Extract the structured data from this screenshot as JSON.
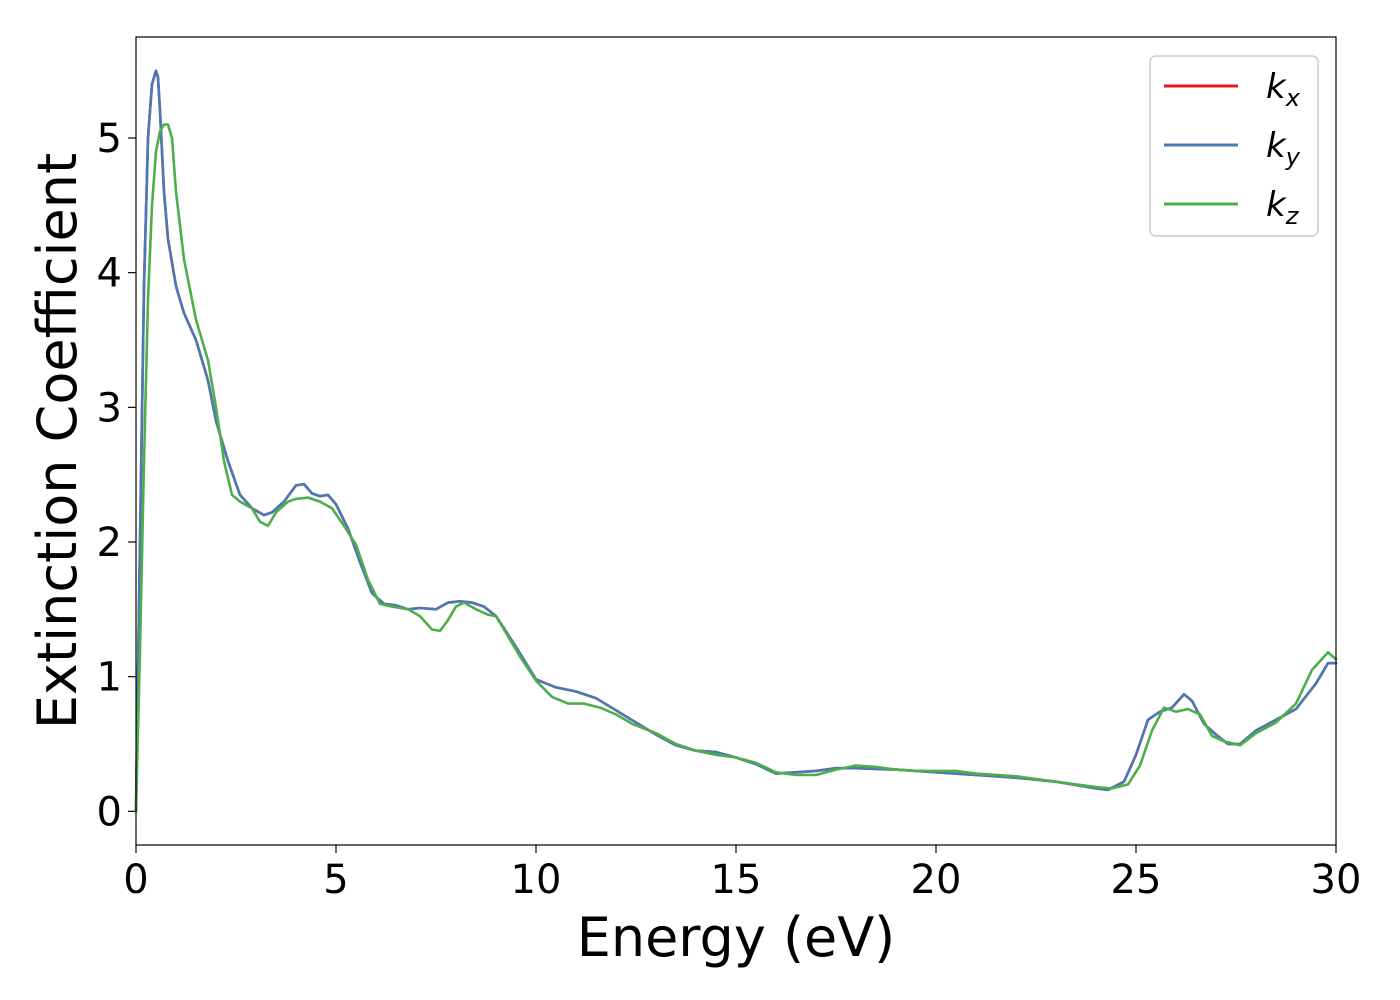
{
  "chart_data": {
    "type": "line",
    "xlabel": "Energy (eV)",
    "ylabel": "Extinction Coefficient",
    "xlim": [
      0,
      30
    ],
    "ylim": [
      -0.25,
      5.75
    ],
    "x_ticks": [
      "0",
      "5",
      "10",
      "15",
      "20",
      "25",
      "30"
    ],
    "y_ticks": [
      "0",
      "1",
      "2",
      "3",
      "4",
      "5"
    ],
    "grid": false,
    "legend_position": "top-right",
    "series": [
      {
        "name": "x",
        "legend_base": "k",
        "color": "#e41a1c",
        "x": [
          0,
          0.1,
          0.2,
          0.3,
          0.4,
          0.5,
          0.55,
          0.6,
          0.7,
          0.8,
          1.0,
          1.2,
          1.5,
          1.8,
          2.0,
          2.3,
          2.6,
          2.9,
          3.2,
          3.4,
          3.7,
          4.0,
          4.2,
          4.4,
          4.6,
          4.8,
          5.0,
          5.3,
          5.6,
          5.9,
          6.2,
          6.5,
          6.8,
          7.1,
          7.5,
          7.8,
          8.1,
          8.4,
          8.7,
          9.0,
          9.5,
          10.0,
          10.5,
          11.0,
          11.5,
          12.0,
          12.5,
          13.0,
          13.5,
          14.0,
          14.5,
          15.0,
          15.5,
          16.0,
          16.5,
          17.0,
          17.5,
          18.0,
          19.0,
          20.0,
          21.0,
          22.0,
          23.0,
          24.0,
          24.3,
          24.7,
          25.0,
          25.3,
          25.6,
          25.9,
          26.2,
          26.4,
          26.7,
          27.0,
          27.3,
          27.6,
          28.0,
          28.5,
          29.0,
          29.5,
          29.8,
          30.0
        ],
        "y": [
          0,
          2.0,
          3.9,
          5.0,
          5.4,
          5.5,
          5.45,
          5.2,
          4.6,
          4.25,
          3.9,
          3.7,
          3.5,
          3.2,
          2.9,
          2.6,
          2.35,
          2.25,
          2.2,
          2.22,
          2.3,
          2.42,
          2.43,
          2.36,
          2.34,
          2.35,
          2.28,
          2.1,
          1.85,
          1.62,
          1.54,
          1.53,
          1.5,
          1.51,
          1.5,
          1.55,
          1.56,
          1.55,
          1.52,
          1.45,
          1.22,
          0.98,
          0.92,
          0.89,
          0.84,
          0.75,
          0.66,
          0.57,
          0.49,
          0.45,
          0.44,
          0.4,
          0.35,
          0.28,
          0.29,
          0.3,
          0.32,
          0.32,
          0.31,
          0.29,
          0.27,
          0.25,
          0.22,
          0.17,
          0.16,
          0.22,
          0.42,
          0.68,
          0.74,
          0.77,
          0.87,
          0.82,
          0.65,
          0.57,
          0.5,
          0.5,
          0.6,
          0.68,
          0.76,
          0.95,
          1.1,
          1.1
        ]
      },
      {
        "name": "y",
        "legend_base": "k",
        "color": "#4a7ab6",
        "x": [
          0,
          0.1,
          0.2,
          0.3,
          0.4,
          0.5,
          0.55,
          0.6,
          0.7,
          0.8,
          1.0,
          1.2,
          1.5,
          1.8,
          2.0,
          2.3,
          2.6,
          2.9,
          3.2,
          3.4,
          3.7,
          4.0,
          4.2,
          4.4,
          4.6,
          4.8,
          5.0,
          5.3,
          5.6,
          5.9,
          6.2,
          6.5,
          6.8,
          7.1,
          7.5,
          7.8,
          8.1,
          8.4,
          8.7,
          9.0,
          9.5,
          10.0,
          10.5,
          11.0,
          11.5,
          12.0,
          12.5,
          13.0,
          13.5,
          14.0,
          14.5,
          15.0,
          15.5,
          16.0,
          16.5,
          17.0,
          17.5,
          18.0,
          19.0,
          20.0,
          21.0,
          22.0,
          23.0,
          24.0,
          24.3,
          24.7,
          25.0,
          25.3,
          25.6,
          25.9,
          26.2,
          26.4,
          26.7,
          27.0,
          27.3,
          27.6,
          28.0,
          28.5,
          29.0,
          29.5,
          29.8,
          30.0
        ],
        "y": [
          0,
          2.0,
          3.9,
          5.0,
          5.4,
          5.5,
          5.45,
          5.2,
          4.6,
          4.25,
          3.9,
          3.7,
          3.5,
          3.2,
          2.9,
          2.6,
          2.35,
          2.25,
          2.2,
          2.22,
          2.3,
          2.42,
          2.43,
          2.36,
          2.34,
          2.35,
          2.28,
          2.1,
          1.85,
          1.62,
          1.54,
          1.53,
          1.5,
          1.51,
          1.5,
          1.55,
          1.56,
          1.55,
          1.52,
          1.45,
          1.22,
          0.98,
          0.92,
          0.89,
          0.84,
          0.75,
          0.66,
          0.57,
          0.49,
          0.45,
          0.44,
          0.4,
          0.35,
          0.28,
          0.29,
          0.3,
          0.32,
          0.32,
          0.31,
          0.29,
          0.27,
          0.25,
          0.22,
          0.17,
          0.16,
          0.22,
          0.42,
          0.68,
          0.74,
          0.77,
          0.87,
          0.82,
          0.65,
          0.57,
          0.5,
          0.5,
          0.6,
          0.68,
          0.76,
          0.95,
          1.1,
          1.1
        ]
      },
      {
        "name": "z",
        "legend_base": "k",
        "color": "#4daf4a",
        "x": [
          0,
          0.1,
          0.2,
          0.3,
          0.4,
          0.5,
          0.6,
          0.7,
          0.8,
          0.9,
          1.0,
          1.2,
          1.5,
          1.8,
          2.0,
          2.2,
          2.4,
          2.6,
          2.9,
          3.1,
          3.3,
          3.5,
          3.8,
          4.0,
          4.3,
          4.6,
          4.9,
          5.2,
          5.5,
          5.8,
          6.1,
          6.4,
          6.8,
          7.1,
          7.4,
          7.6,
          7.8,
          8.0,
          8.2,
          8.5,
          8.8,
          9.0,
          9.3,
          9.6,
          10.0,
          10.4,
          10.8,
          11.2,
          11.6,
          12.0,
          12.4,
          13.0,
          13.5,
          14.0,
          14.5,
          15.0,
          15.5,
          16.0,
          16.5,
          17.0,
          17.5,
          18.0,
          18.5,
          19.0,
          19.5,
          20.0,
          20.5,
          21.0,
          22.0,
          23.0,
          23.5,
          24.0,
          24.4,
          24.8,
          25.1,
          25.4,
          25.7,
          26.0,
          26.3,
          26.6,
          26.9,
          27.2,
          27.6,
          28.0,
          28.5,
          29.0,
          29.4,
          29.8,
          30.0
        ],
        "y": [
          0,
          1.2,
          2.6,
          3.8,
          4.5,
          4.9,
          5.05,
          5.1,
          5.1,
          5.0,
          4.6,
          4.1,
          3.65,
          3.35,
          3.0,
          2.6,
          2.35,
          2.3,
          2.25,
          2.15,
          2.12,
          2.22,
          2.3,
          2.32,
          2.33,
          2.3,
          2.25,
          2.12,
          1.98,
          1.72,
          1.54,
          1.52,
          1.5,
          1.45,
          1.35,
          1.34,
          1.42,
          1.52,
          1.55,
          1.5,
          1.46,
          1.45,
          1.3,
          1.15,
          0.97,
          0.85,
          0.8,
          0.8,
          0.77,
          0.72,
          0.65,
          0.58,
          0.5,
          0.45,
          0.42,
          0.4,
          0.36,
          0.29,
          0.27,
          0.27,
          0.31,
          0.34,
          0.33,
          0.31,
          0.3,
          0.3,
          0.3,
          0.28,
          0.26,
          0.22,
          0.2,
          0.18,
          0.17,
          0.2,
          0.34,
          0.6,
          0.77,
          0.74,
          0.76,
          0.72,
          0.56,
          0.52,
          0.49,
          0.58,
          0.66,
          0.8,
          1.05,
          1.18,
          1.13
        ]
      }
    ]
  }
}
